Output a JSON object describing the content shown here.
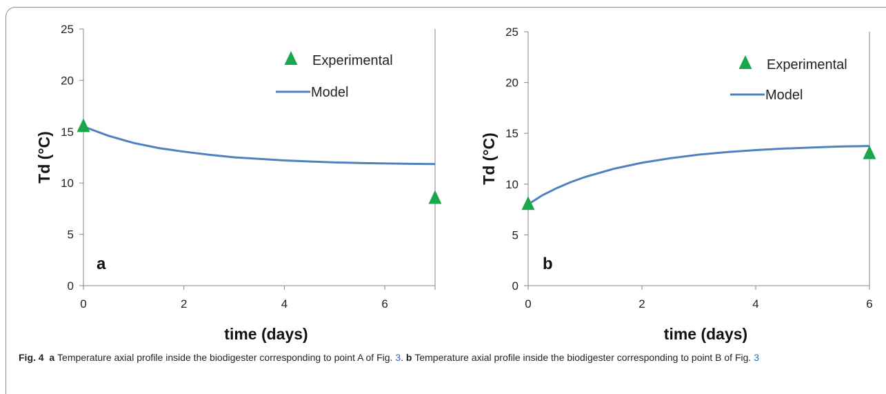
{
  "chart_data": [
    {
      "type": "line",
      "panel_label": "a",
      "xlabel": "time (days)",
      "ylabel": "Td (°C)",
      "xlim": [
        0,
        7
      ],
      "ylim": [
        0,
        25
      ],
      "xticks": [
        0,
        2,
        4,
        6
      ],
      "yticks": [
        0,
        5,
        10,
        15,
        20,
        25
      ],
      "legend": {
        "position": "top-right",
        "entries": [
          "Experimental",
          "Model"
        ]
      },
      "series": [
        {
          "name": "Experimental",
          "kind": "scatter",
          "marker": "triangle",
          "color": "#1aa64a",
          "x": [
            0,
            7
          ],
          "y": [
            15.5,
            8.5
          ]
        },
        {
          "name": "Model",
          "kind": "line",
          "color": "#4f81bd",
          "x": [
            0,
            0.5,
            1,
            1.5,
            2,
            2.5,
            3,
            3.5,
            4,
            4.5,
            5,
            5.5,
            6,
            6.5,
            7
          ],
          "y": [
            15.5,
            14.6,
            13.9,
            13.4,
            13.05,
            12.75,
            12.5,
            12.35,
            12.2,
            12.1,
            12.0,
            11.95,
            11.9,
            11.87,
            11.85
          ]
        }
      ]
    },
    {
      "type": "line",
      "panel_label": "b",
      "xlabel": "time (days)",
      "ylabel": "Td (°C)",
      "xlim": [
        0,
        6
      ],
      "ylim": [
        0,
        25
      ],
      "xticks": [
        0,
        2,
        4,
        6
      ],
      "yticks": [
        0,
        5,
        10,
        15,
        20,
        25
      ],
      "legend": {
        "position": "top-right",
        "entries": [
          "Experimental",
          "Model"
        ]
      },
      "series": [
        {
          "name": "Experimental",
          "kind": "scatter",
          "marker": "triangle",
          "color": "#1aa64a",
          "x": [
            0,
            6
          ],
          "y": [
            8.0,
            13.0
          ]
        },
        {
          "name": "Model",
          "kind": "line",
          "color": "#4f81bd",
          "x": [
            0,
            0.25,
            0.5,
            0.75,
            1,
            1.5,
            2,
            2.5,
            3,
            3.5,
            4,
            4.5,
            5,
            5.5,
            6
          ],
          "y": [
            8.0,
            8.9,
            9.6,
            10.2,
            10.7,
            11.5,
            12.1,
            12.55,
            12.9,
            13.15,
            13.35,
            13.5,
            13.6,
            13.7,
            13.75
          ]
        }
      ]
    }
  ],
  "caption": {
    "fig_label": "Fig. 4",
    "a_label": "a",
    "a_text_pre": "Temperature axial profile inside the biodigester corresponding to point A of Fig. ",
    "a_ref": "3",
    "a_text_post": ". ",
    "b_label": "b",
    "b_text_pre": "Temperature axial profile inside the biodigester corresponding to point B of Fig. ",
    "b_ref": "3"
  }
}
